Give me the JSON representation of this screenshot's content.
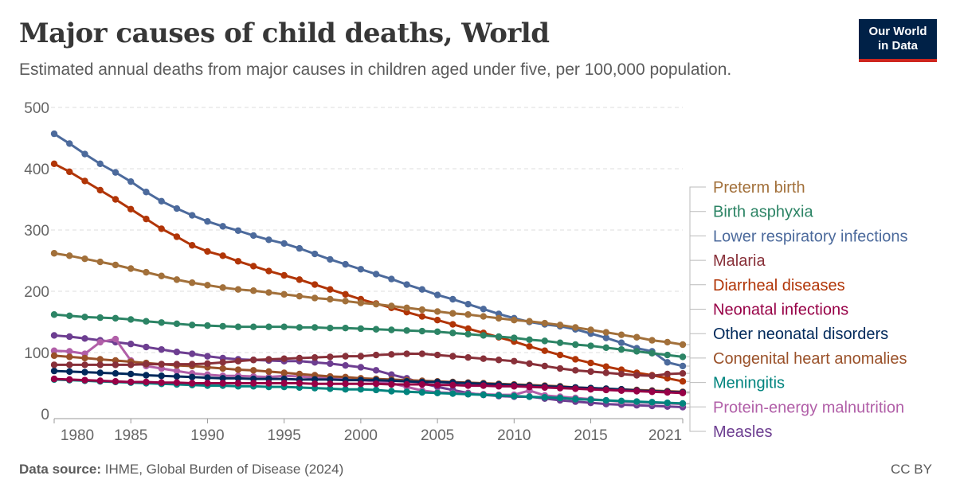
{
  "header": {
    "title": "Major causes of child deaths, World",
    "subtitle": "Estimated annual deaths from major causes in children aged under five, per 100,000 population.",
    "logo": "Our World in Data"
  },
  "footer": {
    "source_label": "Data source:",
    "source": "IHME, Global Burden of Disease (2024)",
    "license": "CC BY"
  },
  "chart_data": {
    "type": "line",
    "title": "Major causes of child deaths, World",
    "xlim": [
      1980,
      2021
    ],
    "ylim": [
      0,
      500
    ],
    "x_ticks": [
      1980,
      1985,
      1990,
      1995,
      2000,
      2005,
      2010,
      2015,
      2021
    ],
    "y_ticks": [
      0,
      100,
      200,
      300,
      400,
      500
    ],
    "grid": "horizontal dashed",
    "legend": "right, direct labels",
    "x": [
      1980,
      1981,
      1982,
      1983,
      1984,
      1985,
      1986,
      1987,
      1988,
      1989,
      1990,
      1991,
      1992,
      1993,
      1994,
      1995,
      1996,
      1997,
      1998,
      1999,
      2000,
      2001,
      2002,
      2003,
      2004,
      2005,
      2006,
      2007,
      2008,
      2009,
      2010,
      2011,
      2012,
      2013,
      2014,
      2015,
      2016,
      2017,
      2018,
      2019,
      2020,
      2021
    ],
    "series": [
      {
        "name": "Preterm birth",
        "color": "#A2703A",
        "values": [
          262,
          258,
          253,
          248,
          243,
          237,
          231,
          225,
          219,
          214,
          210,
          206,
          203,
          201,
          198,
          195,
          192,
          189,
          187,
          184,
          181,
          179,
          176,
          173,
          170,
          167,
          164,
          162,
          159,
          156,
          153,
          151,
          148,
          145,
          141,
          137,
          133,
          129,
          125,
          120,
          117,
          113
        ]
      },
      {
        "name": "Birth asphyxia",
        "color": "#2C8465",
        "values": [
          162,
          160,
          158,
          157,
          156,
          154,
          151,
          149,
          147,
          145,
          144,
          143,
          142,
          142,
          142,
          142,
          141,
          141,
          140,
          140,
          139,
          138,
          137,
          136,
          135,
          134,
          132,
          130,
          128,
          126,
          124,
          121,
          119,
          116,
          113,
          111,
          108,
          105,
          102,
          99,
          96,
          93
        ]
      },
      {
        "name": "Lower respiratory infections",
        "color": "#4C6A9C",
        "values": [
          457,
          441,
          424,
          408,
          394,
          379,
          362,
          347,
          335,
          324,
          314,
          306,
          299,
          291,
          284,
          278,
          270,
          261,
          252,
          244,
          236,
          228,
          220,
          211,
          203,
          194,
          187,
          179,
          171,
          163,
          156,
          150,
          146,
          143,
          138,
          131,
          124,
          116,
          107,
          102,
          84,
          78
        ]
      },
      {
        "name": "Malaria",
        "color": "#883039",
        "values": [
          80,
          80,
          80,
          80,
          80,
          80,
          81,
          81,
          81,
          81,
          82,
          84,
          86,
          88,
          89,
          90,
          91,
          92,
          93,
          94,
          94,
          96,
          97,
          98,
          98,
          96,
          94,
          92,
          90,
          88,
          86,
          82,
          78,
          74,
          71,
          69,
          67,
          65,
          63,
          62,
          65,
          66
        ]
      },
      {
        "name": "Diarrheal diseases",
        "color": "#B13507",
        "values": [
          408,
          395,
          380,
          365,
          350,
          334,
          318,
          302,
          289,
          275,
          265,
          258,
          249,
          241,
          233,
          226,
          219,
          211,
          203,
          195,
          187,
          180,
          173,
          166,
          159,
          153,
          146,
          139,
          132,
          125,
          118,
          110,
          103,
          96,
          89,
          83,
          77,
          72,
          67,
          63,
          58,
          53
        ]
      },
      {
        "name": "Neonatal infections",
        "color": "#970046",
        "values": [
          57,
          56,
          55,
          54,
          53,
          52,
          52,
          51,
          51,
          50,
          50,
          50,
          50,
          50,
          50,
          50,
          50,
          49,
          49,
          49,
          49,
          49,
          48,
          48,
          48,
          47,
          47,
          46,
          46,
          45,
          45,
          44,
          43,
          42,
          41,
          40,
          39,
          38,
          37,
          36,
          35,
          34
        ]
      },
      {
        "name": "Other neonatal disorders",
        "color": "#00295B",
        "values": [
          70,
          69,
          68,
          67,
          66,
          65,
          63,
          62,
          61,
          60,
          59,
          58,
          58,
          57,
          57,
          57,
          56,
          56,
          56,
          55,
          55,
          55,
          54,
          53,
          52,
          52,
          51,
          50,
          49,
          48,
          47,
          46,
          45,
          44,
          43,
          42,
          41,
          40,
          38,
          37,
          36,
          35
        ]
      },
      {
        "name": "Congenital heart anomalies",
        "color": "#9A5129",
        "values": [
          95,
          93,
          91,
          89,
          87,
          85,
          83,
          81,
          79,
          78,
          76,
          74,
          72,
          71,
          69,
          67,
          65,
          63,
          61,
          60,
          58,
          57,
          56,
          55,
          54,
          53,
          52,
          51,
          50,
          49,
          48,
          47,
          46,
          45,
          43,
          42,
          41,
          40,
          39,
          38,
          37,
          36
        ]
      },
      {
        "name": "Meningitis",
        "color": "#00847E",
        "values": [
          56,
          55,
          54,
          53,
          52,
          51,
          50,
          49,
          48,
          47,
          46,
          46,
          45,
          45,
          44,
          44,
          43,
          42,
          41,
          40,
          40,
          39,
          37,
          36,
          35,
          34,
          33,
          32,
          31,
          30,
          29,
          28,
          27,
          26,
          24,
          23,
          22,
          21,
          20,
          19,
          18,
          17
        ]
      },
      {
        "name": "Protein-energy malnutrition",
        "color": "#B15FA8",
        "values": [
          103,
          102,
          98,
          117,
          122,
          87,
          78,
          74,
          70,
          66,
          64,
          62,
          62,
          61,
          60,
          62,
          61,
          59,
          58,
          56,
          55,
          53,
          50,
          44,
          38,
          35,
          34,
          33,
          32,
          31,
          31,
          38,
          30,
          28,
          26,
          24,
          22,
          20,
          19,
          18,
          17,
          16
        ]
      },
      {
        "name": "Measles",
        "color": "#6D3E91",
        "values": [
          128,
          126,
          123,
          120,
          117,
          114,
          109,
          105,
          101,
          98,
          94,
          91,
          89,
          88,
          87,
          86,
          86,
          84,
          82,
          79,
          76,
          71,
          64,
          58,
          50,
          44,
          39,
          34,
          31,
          29,
          28,
          28,
          25,
          22,
          20,
          18,
          16,
          15,
          14,
          13,
          12,
          11
        ]
      }
    ]
  }
}
